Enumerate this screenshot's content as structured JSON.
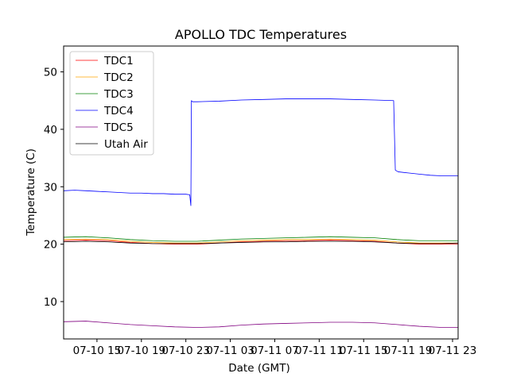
{
  "chart_data": {
    "type": "line",
    "title": "APOLLO TDC Temperatures",
    "xlabel": "Date (GMT)",
    "ylabel": "Temperature (C)",
    "x_unit": "hours since 07-10 12:00 GMT",
    "xlim": [
      0,
      35.5
    ],
    "ylim": [
      3.5,
      54.5
    ],
    "yticks": [
      10,
      20,
      30,
      40,
      50
    ],
    "xticks": [
      {
        "x": 3,
        "label": "07-10 15"
      },
      {
        "x": 7,
        "label": "07-10 19"
      },
      {
        "x": 11,
        "label": "07-10 23"
      },
      {
        "x": 15,
        "label": "07-11 03"
      },
      {
        "x": 19,
        "label": "07-11 07"
      },
      {
        "x": 23,
        "label": "07-11 11"
      },
      {
        "x": 27,
        "label": "07-11 15"
      },
      {
        "x": 31,
        "label": "07-11 19"
      },
      {
        "x": 35,
        "label": "07-11 23"
      }
    ],
    "grid": false,
    "legend_position": "top-left",
    "series": [
      {
        "name": "TDC1",
        "color": "#ff0000",
        "x": [
          0,
          2,
          4,
          6,
          8,
          10,
          12,
          14,
          16,
          18,
          20,
          22,
          24,
          26,
          28,
          30,
          32,
          34,
          35.5
        ],
        "y": [
          20.6,
          20.7,
          20.6,
          20.3,
          20.1,
          20.0,
          20.0,
          20.2,
          20.4,
          20.5,
          20.6,
          20.6,
          20.7,
          20.6,
          20.5,
          20.2,
          20.0,
          20.0,
          20.0
        ]
      },
      {
        "name": "TDC2",
        "color": "#ffa500",
        "x": [
          0,
          2,
          4,
          6,
          8,
          10,
          12,
          14,
          16,
          18,
          20,
          22,
          24,
          26,
          28,
          30,
          32,
          34,
          35.5
        ],
        "y": [
          20.8,
          20.9,
          20.8,
          20.5,
          20.3,
          20.2,
          20.2,
          20.4,
          20.6,
          20.7,
          20.8,
          20.8,
          20.9,
          20.8,
          20.7,
          20.4,
          20.2,
          20.2,
          20.2
        ]
      },
      {
        "name": "TDC3",
        "color": "#008000",
        "x": [
          0,
          2,
          4,
          6,
          8,
          10,
          12,
          14,
          16,
          18,
          20,
          22,
          24,
          26,
          28,
          30,
          32,
          34,
          35.5
        ],
        "y": [
          21.2,
          21.3,
          21.1,
          20.8,
          20.6,
          20.5,
          20.5,
          20.7,
          20.9,
          21.0,
          21.1,
          21.2,
          21.3,
          21.2,
          21.1,
          20.8,
          20.6,
          20.6,
          20.6
        ]
      },
      {
        "name": "TDC4",
        "color": "#0000ff",
        "x": [
          0,
          1,
          2,
          3,
          4,
          5,
          6,
          7,
          8,
          9,
          10,
          11,
          11.35,
          11.45,
          11.5,
          11.6,
          12,
          14,
          16,
          18,
          20,
          22,
          24,
          26,
          28,
          29.7,
          29.85,
          30.1,
          31,
          32,
          33,
          34,
          35.5
        ],
        "y": [
          29.3,
          29.4,
          29.3,
          29.2,
          29.1,
          29.0,
          28.9,
          28.9,
          28.8,
          28.8,
          28.7,
          28.7,
          28.6,
          26.7,
          45.0,
          44.8,
          44.8,
          44.9,
          45.1,
          45.2,
          45.3,
          45.3,
          45.3,
          45.2,
          45.1,
          45.0,
          32.9,
          32.6,
          32.4,
          32.2,
          32.0,
          31.9,
          31.9
        ]
      },
      {
        "name": "TDC5",
        "color": "#800080",
        "x": [
          0,
          2,
          4,
          6,
          8,
          10,
          12,
          14,
          16,
          18,
          20,
          22,
          24,
          26,
          28,
          30,
          32,
          34,
          35.5
        ],
        "y": [
          6.5,
          6.6,
          6.3,
          6.0,
          5.8,
          5.6,
          5.5,
          5.6,
          5.9,
          6.1,
          6.2,
          6.3,
          6.4,
          6.4,
          6.3,
          6.0,
          5.7,
          5.5,
          5.5
        ]
      },
      {
        "name": "Utah Air",
        "color": "#000000",
        "x": [
          0,
          2,
          4,
          6,
          8,
          10,
          12,
          14,
          16,
          18,
          20,
          22,
          24,
          26,
          28,
          30,
          32,
          34,
          35.5
        ],
        "y": [
          20.4,
          20.5,
          20.4,
          20.2,
          20.1,
          20.1,
          20.1,
          20.2,
          20.3,
          20.4,
          20.4,
          20.5,
          20.5,
          20.5,
          20.4,
          20.2,
          20.1,
          20.1,
          20.2
        ]
      }
    ]
  }
}
